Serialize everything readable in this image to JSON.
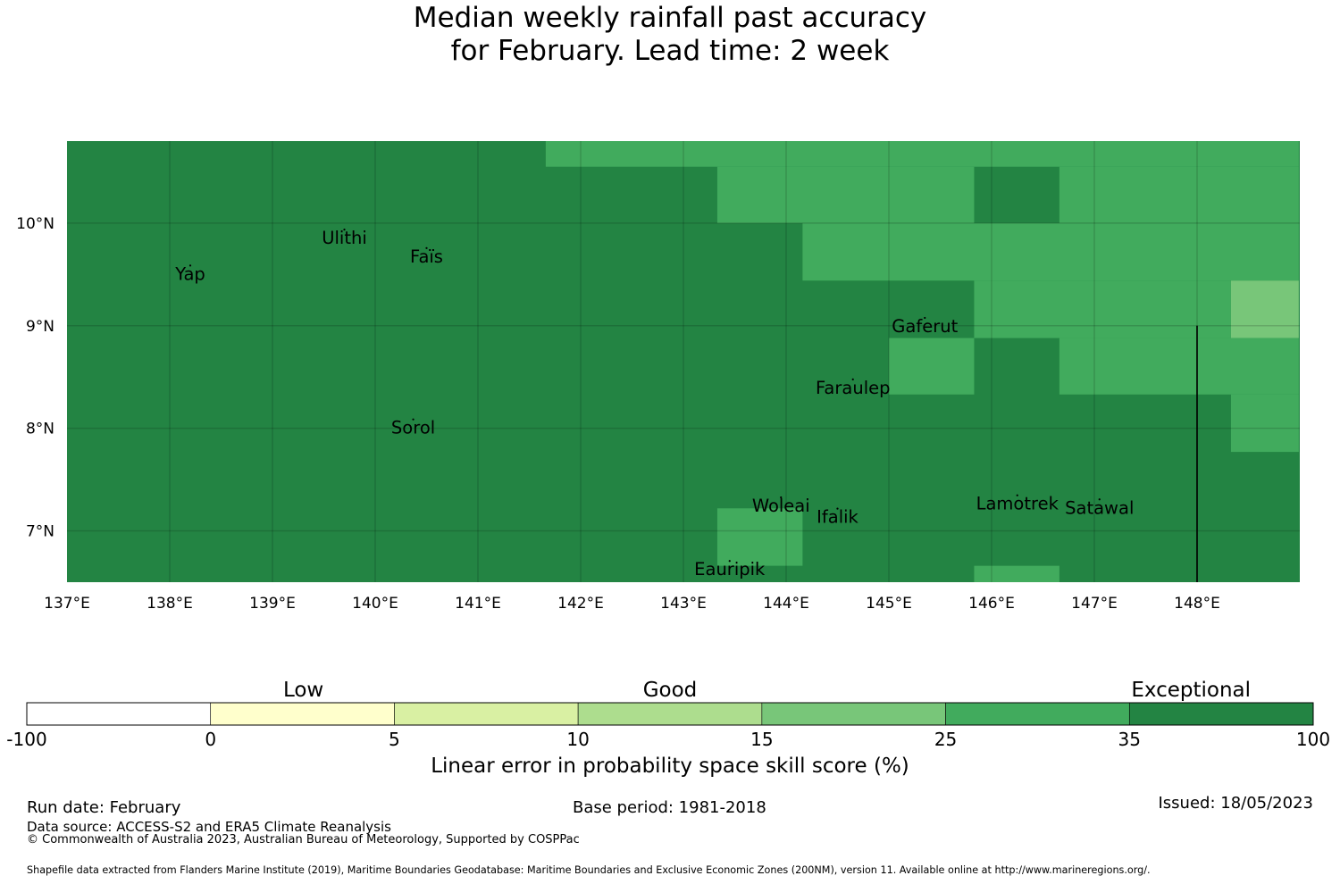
{
  "title_line1": "Median weekly rainfall past accuracy",
  "title_line2": "for February. Lead time: 2 week",
  "map": {
    "lon_range": [
      137.0,
      149.0
    ],
    "lat_range": [
      6.5,
      10.8
    ],
    "lon_ticks": [
      {
        "value": 137,
        "label": "137°E"
      },
      {
        "value": 138,
        "label": "138°E"
      },
      {
        "value": 139,
        "label": "139°E"
      },
      {
        "value": 140,
        "label": "140°E"
      },
      {
        "value": 141,
        "label": "141°E"
      },
      {
        "value": 142,
        "label": "142°E"
      },
      {
        "value": 143,
        "label": "143°E"
      },
      {
        "value": 144,
        "label": "144°E"
      },
      {
        "value": 145,
        "label": "145°E"
      },
      {
        "value": 146,
        "label": "146°E"
      },
      {
        "value": 147,
        "label": "147°E"
      },
      {
        "value": 148,
        "label": "148°E"
      }
    ],
    "lat_ticks": [
      {
        "value": 10,
        "label": "10°N"
      },
      {
        "value": 9,
        "label": "9°N"
      },
      {
        "value": 8,
        "label": "8°N"
      },
      {
        "value": 7,
        "label": "7°N"
      }
    ],
    "background_color": "#238443",
    "skill_cells": [
      {
        "lon": [
          141.66,
          148.99
        ],
        "lat": [
          10.55,
          10.8
        ],
        "color": "#41ab5d"
      },
      {
        "lon": [
          143.33,
          145.83
        ],
        "lat": [
          10.0,
          10.55
        ],
        "color": "#41ab5d"
      },
      {
        "lon": [
          146.66,
          148.99
        ],
        "lat": [
          10.0,
          10.55
        ],
        "color": "#41ab5d"
      },
      {
        "lon": [
          144.16,
          148.99
        ],
        "lat": [
          9.44,
          10.0
        ],
        "color": "#41ab5d"
      },
      {
        "lon": [
          145.83,
          148.33
        ],
        "lat": [
          8.88,
          9.44
        ],
        "color": "#41ab5d"
      },
      {
        "lon": [
          148.33,
          148.99
        ],
        "lat": [
          8.88,
          9.44
        ],
        "color": "#78c679"
      },
      {
        "lon": [
          145.0,
          145.83
        ],
        "lat": [
          8.33,
          8.88
        ],
        "color": "#41ab5d"
      },
      {
        "lon": [
          146.66,
          148.99
        ],
        "lat": [
          8.33,
          8.88
        ],
        "color": "#41ab5d"
      },
      {
        "lon": [
          148.33,
          148.99
        ],
        "lat": [
          7.77,
          8.33
        ],
        "color": "#41ab5d"
      },
      {
        "lon": [
          143.33,
          144.16
        ],
        "lat": [
          6.66,
          7.22
        ],
        "color": "#41ab5d"
      },
      {
        "lon": [
          145.83,
          146.66
        ],
        "lat": [
          6.5,
          6.66
        ],
        "color": "#41ab5d"
      }
    ],
    "boundary_line": {
      "lon": 148.0,
      "lat": [
        6.5,
        9.0
      ]
    },
    "islands": [
      {
        "name": "Yap",
        "lon": 138.2,
        "lat": 9.5
      },
      {
        "name": "Ulithi",
        "lon": 139.7,
        "lat": 9.85
      },
      {
        "name": "Faïs",
        "lon": 140.5,
        "lat": 9.67
      },
      {
        "name": "Gaferut",
        "lon": 145.35,
        "lat": 8.99
      },
      {
        "name": "Faraulep",
        "lon": 144.65,
        "lat": 8.39
      },
      {
        "name": "Sorol",
        "lon": 140.37,
        "lat": 8.0
      },
      {
        "name": "Woleai",
        "lon": 143.95,
        "lat": 7.24
      },
      {
        "name": "Ifalik",
        "lon": 144.5,
        "lat": 7.13
      },
      {
        "name": "Lamotrek",
        "lon": 146.25,
        "lat": 7.26
      },
      {
        "name": "Satawal",
        "lon": 147.05,
        "lat": 7.22
      },
      {
        "name": "Eauripik",
        "lon": 143.45,
        "lat": 6.62
      }
    ]
  },
  "colorbar": {
    "categories": [
      {
        "label": "Low",
        "position": 0.215
      },
      {
        "label": "Good",
        "position": 0.5
      },
      {
        "label": "Exceptional",
        "position": 0.905
      }
    ],
    "bins": [
      {
        "from": "-100",
        "to": "0",
        "color": "#ffffff"
      },
      {
        "from": "0",
        "to": "5",
        "color": "#ffffcc"
      },
      {
        "from": "5",
        "to": "10",
        "color": "#d9f0a3"
      },
      {
        "from": "10",
        "to": "15",
        "color": "#addd8e"
      },
      {
        "from": "15",
        "to": "25",
        "color": "#78c679"
      },
      {
        "from": "25",
        "to": "35",
        "color": "#41ab5d"
      },
      {
        "from": "35",
        "to": "100",
        "color": "#238443"
      }
    ],
    "tick_labels": [
      "-100",
      "0",
      "5",
      "10",
      "15",
      "25",
      "35",
      "100"
    ],
    "title": "Linear error in probability space skill score (%)"
  },
  "footer": {
    "run_date": "Run date: February",
    "base_period": "Base period: 1981-2018",
    "issued": "Issued: 18/05/2023",
    "data_source": "Data source: ACCESS-S2 and ERA5 Climate Reanalysis",
    "copyright": "© Commonwealth of Australia 2023, Australian Bureau of Meteorology, Supported by COSPPac",
    "shapefile": "Shapefile data extracted from Flanders Marine Institute (2019), Maritime Boundaries Geodatabase: Maritime Boundaries and Exclusive Economic Zones (200NM), version 11. Available online at http://www.marineregions.org/."
  }
}
